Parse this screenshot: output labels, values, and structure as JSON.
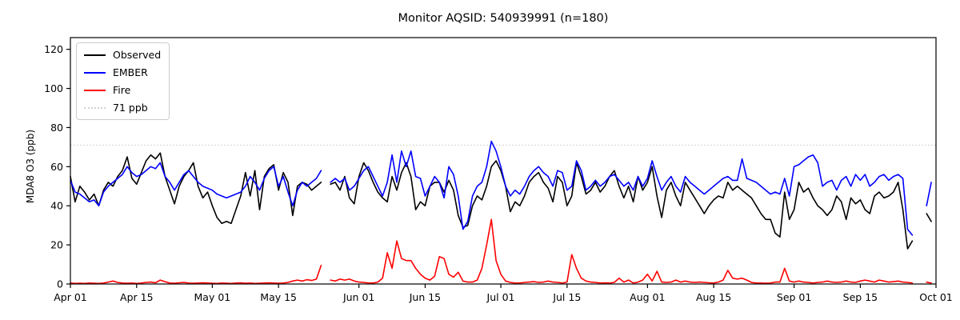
{
  "chart_data": {
    "type": "line",
    "title": "Monitor AQSID: 540939991 (n=180)",
    "ylabel": "MDA8 O3 (ppb)",
    "xlabel": "",
    "monitor_aqsid": "540939991",
    "n": 180,
    "ylim": [
      0,
      126
    ],
    "yticks": [
      0,
      20,
      40,
      60,
      80,
      100,
      120
    ],
    "grid": false,
    "legend_position": "upper left",
    "x_range_days": 183,
    "xticks": [
      {
        "index": 0,
        "label": "Apr 01"
      },
      {
        "index": 14,
        "label": "Apr 15"
      },
      {
        "index": 30,
        "label": "May 01"
      },
      {
        "index": 44,
        "label": "May 15"
      },
      {
        "index": 61,
        "label": "Jun 01"
      },
      {
        "index": 75,
        "label": "Jun 15"
      },
      {
        "index": 91,
        "label": "Jul 01"
      },
      {
        "index": 105,
        "label": "Jul 15"
      },
      {
        "index": 122,
        "label": "Aug 01"
      },
      {
        "index": 136,
        "label": "Aug 15"
      },
      {
        "index": 153,
        "label": "Sep 01"
      },
      {
        "index": 167,
        "label": "Sep 15"
      },
      {
        "index": 183,
        "label": "Oct 01"
      }
    ],
    "threshold": {
      "label": "71 ppb",
      "value": 71,
      "color": "#d3d3d3",
      "style": "dotted"
    },
    "series": [
      {
        "name": "Observed",
        "color": "#000000",
        "values": [
          55,
          42,
          50,
          47,
          43,
          46,
          40,
          48,
          52,
          50,
          55,
          58,
          65,
          54,
          51,
          57,
          63,
          66,
          64,
          67,
          55,
          48,
          41,
          50,
          55,
          58,
          62,
          50,
          44,
          47,
          40,
          34,
          31,
          32,
          31,
          38,
          45,
          57,
          45,
          58,
          38,
          55,
          59,
          61,
          48,
          57,
          52,
          35,
          50,
          52,
          51,
          48,
          50,
          52,
          null,
          51,
          52,
          48,
          55,
          44,
          41,
          55,
          62,
          58,
          52,
          47,
          44,
          42,
          55,
          48,
          57,
          62,
          55,
          38,
          42,
          40,
          50,
          52,
          52,
          47,
          53,
          48,
          35,
          29,
          30,
          40,
          45,
          43,
          50,
          60,
          63,
          58,
          50,
          37,
          42,
          40,
          45,
          52,
          55,
          57,
          52,
          49,
          42,
          55,
          52,
          40,
          45,
          62,
          55,
          46,
          48,
          52,
          47,
          50,
          55,
          58,
          50,
          44,
          50,
          42,
          55,
          48,
          52,
          60,
          45,
          34,
          48,
          52,
          45,
          40,
          52,
          48,
          44,
          40,
          36,
          40,
          43,
          45,
          44,
          52,
          48,
          50,
          48,
          46,
          44,
          40,
          36,
          33,
          33,
          26,
          24,
          47,
          33,
          38,
          52,
          47,
          49,
          44,
          40,
          38,
          35,
          38,
          45,
          42,
          33,
          44,
          41,
          43,
          38,
          36,
          45,
          47,
          44,
          45,
          47,
          52,
          38,
          18,
          22,
          null,
          null,
          36,
          32
        ]
      },
      {
        "name": "EMBER",
        "color": "#0000ff",
        "values": [
          53,
          47,
          46,
          44,
          42,
          43,
          40,
          47,
          50,
          52,
          54,
          56,
          60,
          57,
          55,
          56,
          58,
          60,
          59,
          62,
          55,
          52,
          48,
          52,
          56,
          58,
          55,
          52,
          50,
          49,
          48,
          46,
          45,
          44,
          45,
          46,
          47,
          50,
          55,
          52,
          48,
          54,
          58,
          60,
          50,
          55,
          47,
          40,
          48,
          52,
          50,
          52,
          54,
          58,
          null,
          52,
          54,
          52,
          54,
          48,
          50,
          54,
          58,
          60,
          55,
          50,
          45,
          52,
          66,
          52,
          68,
          60,
          68,
          55,
          54,
          45,
          50,
          55,
          52,
          44,
          60,
          56,
          45,
          28,
          32,
          45,
          50,
          52,
          60,
          73,
          68,
          60,
          50,
          45,
          48,
          46,
          50,
          55,
          58,
          60,
          57,
          55,
          50,
          58,
          57,
          48,
          50,
          63,
          58,
          48,
          50,
          53,
          50,
          52,
          55,
          56,
          53,
          50,
          52,
          48,
          55,
          50,
          54,
          63,
          55,
          48,
          52,
          55,
          50,
          47,
          55,
          52,
          50,
          48,
          46,
          48,
          50,
          52,
          54,
          55,
          53,
          53,
          64,
          54,
          53,
          52,
          50,
          48,
          46,
          47,
          46,
          54,
          45,
          60,
          61,
          63,
          65,
          66,
          62,
          50,
          52,
          53,
          48,
          53,
          55,
          50,
          56,
          53,
          56,
          50,
          52,
          55,
          56,
          53,
          55,
          56,
          54,
          28,
          25,
          null,
          null,
          40,
          52
        ]
      },
      {
        "name": "Fire",
        "color": "#ff0000",
        "values": [
          0.5,
          0.3,
          0.4,
          0.3,
          0.5,
          0.4,
          0.3,
          0.5,
          1.0,
          1.5,
          0.8,
          0.5,
          0.4,
          0.5,
          0.3,
          0.5,
          0.8,
          1.0,
          0.6,
          2.0,
          1.2,
          0.5,
          0.4,
          0.6,
          0.8,
          0.5,
          0.4,
          0.5,
          0.6,
          0.5,
          0.4,
          0.3,
          0.5,
          0.4,
          0.3,
          0.5,
          0.6,
          0.4,
          0.5,
          0.3,
          0.4,
          0.5,
          0.6,
          0.5,
          0.4,
          0.5,
          0.8,
          1.5,
          2.0,
          1.5,
          2.2,
          1.8,
          2.5,
          9.5,
          null,
          2.0,
          1.5,
          2.5,
          2.0,
          2.5,
          1.5,
          1.0,
          0.8,
          0.5,
          0.5,
          1.0,
          3.0,
          16.0,
          8.0,
          22.0,
          13.0,
          12.0,
          12.0,
          8.0,
          5.0,
          3.0,
          2.0,
          4.0,
          14.0,
          13.0,
          5.0,
          3.5,
          6.0,
          1.5,
          1.0,
          1.0,
          2.0,
          8.0,
          20.0,
          33.0,
          12.0,
          5.0,
          1.5,
          0.8,
          0.5,
          0.5,
          0.8,
          1.0,
          1.2,
          0.8,
          1.0,
          1.5,
          1.0,
          0.8,
          0.5,
          1.0,
          15.0,
          8.0,
          3.0,
          1.5,
          1.0,
          0.8,
          0.5,
          0.6,
          0.5,
          0.8,
          3.0,
          1.0,
          2.0,
          0.5,
          1.0,
          2.0,
          5.0,
          1.5,
          6.5,
          1.0,
          0.8,
          1.0,
          2.0,
          1.0,
          1.5,
          1.0,
          0.8,
          1.0,
          0.8,
          0.6,
          0.5,
          1.0,
          2.0,
          7.0,
          3.0,
          2.5,
          3.0,
          2.0,
          0.8,
          0.5,
          0.5,
          0.4,
          0.5,
          1.0,
          1.0,
          8.0,
          1.5,
          1.0,
          1.5,
          1.0,
          0.8,
          0.5,
          0.8,
          1.0,
          1.5,
          1.0,
          0.8,
          1.0,
          1.5,
          1.0,
          0.8,
          1.5,
          2.0,
          1.5,
          1.0,
          2.0,
          1.5,
          1.0,
          1.2,
          1.5,
          1.0,
          0.8,
          0.5,
          null,
          null,
          1.0,
          0.5
        ]
      }
    ]
  }
}
